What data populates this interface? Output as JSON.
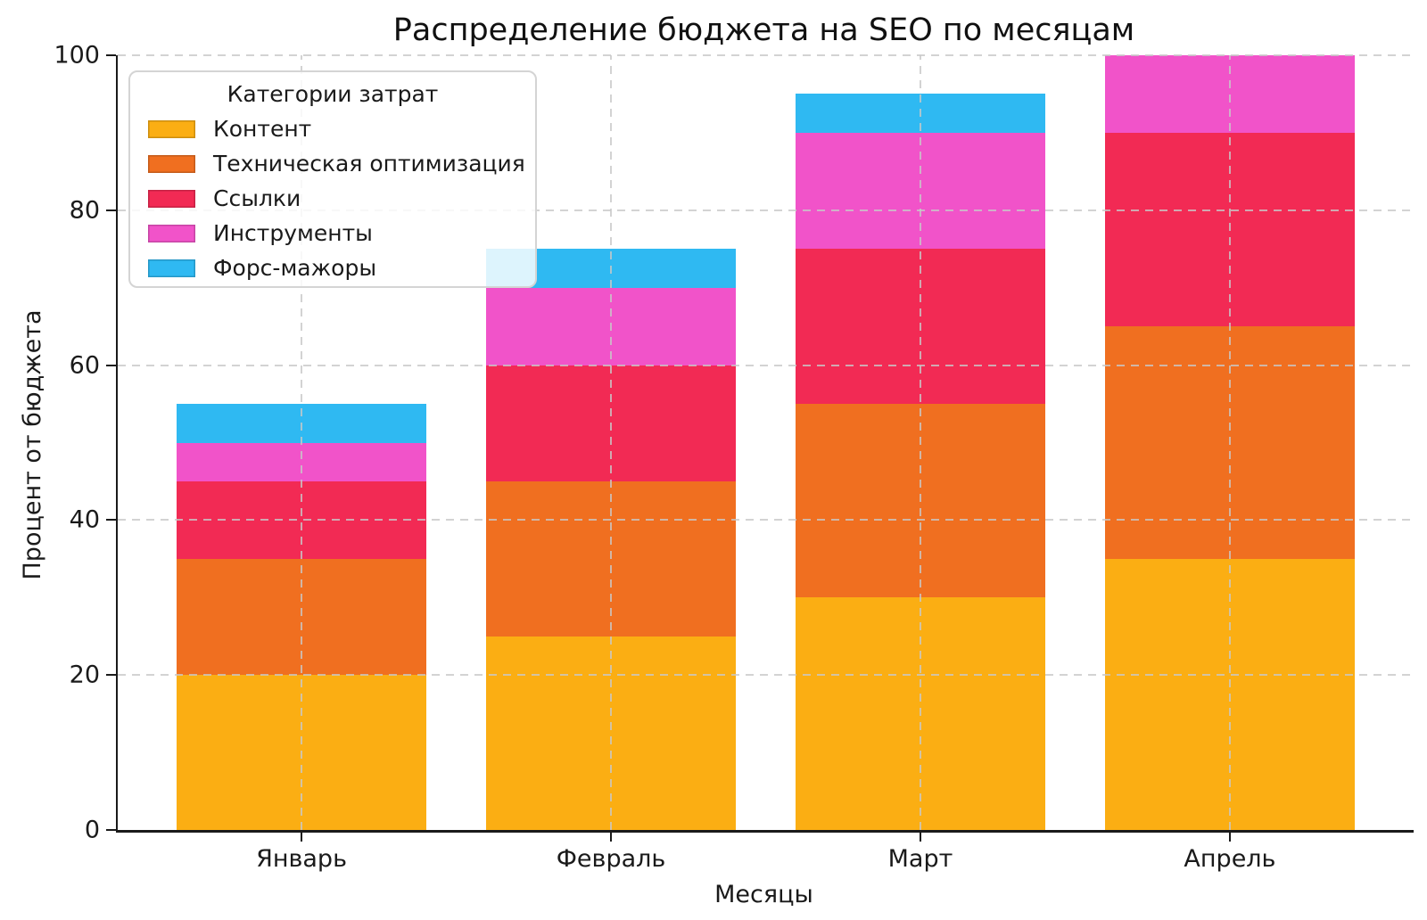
{
  "title": "Распределение бюджета на SEO по месяцам",
  "chart_data": {
    "type": "bar",
    "stacked": true,
    "title": "Распределение бюджета на SEO по месяцам",
    "xlabel": "Месяцы",
    "ylabel": "Процент от бюджета",
    "categories": [
      "Январь",
      "Февраль",
      "Март",
      "Апрель"
    ],
    "series": [
      {
        "name": "Контент",
        "color": "#FBAE13",
        "values": [
          20,
          25,
          30,
          35
        ]
      },
      {
        "name": "Техническая оптимизация",
        "color": "#F06F20",
        "values": [
          15,
          20,
          25,
          30
        ]
      },
      {
        "name": "Ссылки",
        "color": "#F22A54",
        "values": [
          10,
          15,
          20,
          25
        ]
      },
      {
        "name": "Инструменты",
        "color": "#F153C9",
        "values": [
          5,
          10,
          15,
          10
        ]
      },
      {
        "name": "Форс-мажоры",
        "color": "#2FB9F2",
        "values": [
          5,
          5,
          5,
          0
        ]
      }
    ],
    "totals": [
      55,
      75,
      95,
      100
    ],
    "ylim": [
      0,
      100
    ],
    "yticks": [
      0,
      20,
      40,
      60,
      80,
      100
    ],
    "legend_title": "Категории затрат",
    "legend_position": "upper left",
    "grid": "dashed, both axes, drawn above bars"
  },
  "style_colors": {
    "grid": "#c8c8c8",
    "spine": "#1a1a1a",
    "text": "#1a1a1a",
    "legend_border": "#d4d4d4",
    "legend_background": "rgba(255,255,255,0.84)"
  }
}
